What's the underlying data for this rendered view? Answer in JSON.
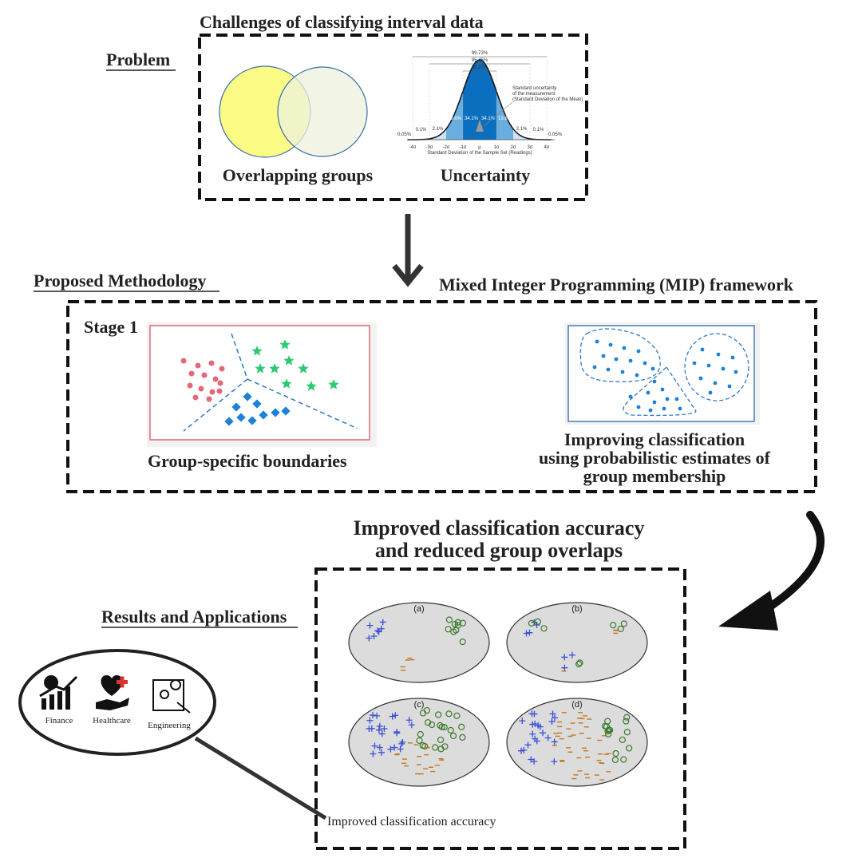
{
  "problem": {
    "section_label": "Problem",
    "title": "Challenges of classifying interval data",
    "items": [
      "Overlapping groups",
      "Uncertainty"
    ],
    "normal_curve": {
      "ranges": [
        "99.73%",
        "95.45%",
        "68.27%"
      ],
      "band_labels": [
        "0.05%",
        "0.1%",
        "2.1%",
        "13.6%",
        "34.1%",
        "34.1%",
        "13.6%",
        "2.1%",
        "0.1%",
        "0.05%"
      ],
      "axis_labels": [
        "-4σ",
        "-3σ",
        "-2σ",
        "-1σ",
        "μ",
        "1σ",
        "2σ",
        "3σ",
        "4σ"
      ],
      "note": [
        "Standard uncertainty",
        "of the measurement",
        "(Standard Deviation of the Mean)"
      ],
      "axis_title": "Standard Deviation of the Sample Set (Readings)"
    }
  },
  "methodology": {
    "section_label": "Proposed Methodology",
    "framework": "Mixed Integer Programming (MIP) framework",
    "stage": "Stage 1",
    "left_caption": "Group-specific boundaries",
    "right_caption": [
      "Improving classification",
      "using probabilistic estimates of",
      "group membership"
    ]
  },
  "results": {
    "heading": [
      "Improved classification accuracy",
      "and reduced group overlaps"
    ],
    "section_label": "Results and Applications",
    "panels": [
      "(a)",
      "(b)",
      "(c)",
      "(d)"
    ],
    "applications": [
      "Finance",
      "Healthcare",
      "Engineering"
    ],
    "caption": "Improved classification accuracy"
  }
}
